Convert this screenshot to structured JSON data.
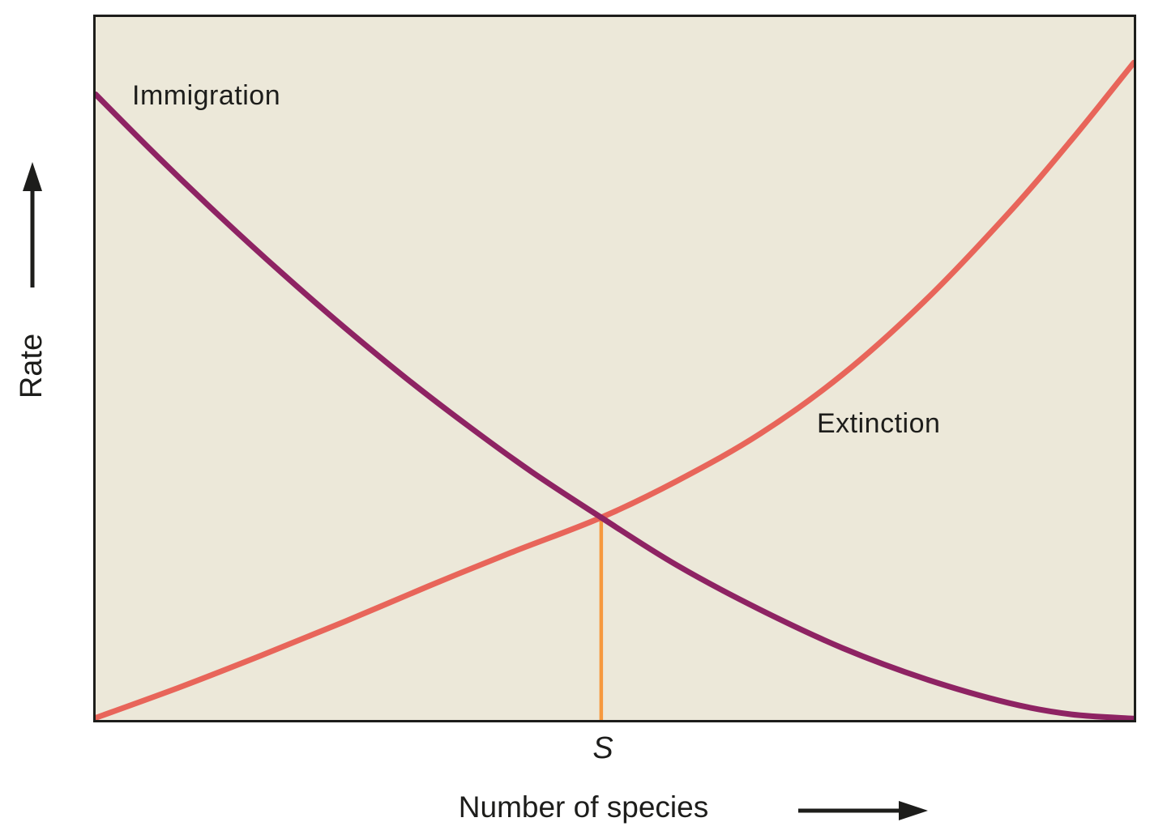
{
  "chart_data": {
    "type": "line",
    "title": "",
    "xlabel": "Number of species",
    "ylabel": "Rate",
    "plot_background": "#ece8d9",
    "border_color": "#1d1d1b",
    "x_axis": {
      "min": 0,
      "max": 1,
      "arrow": true,
      "ticks": [
        {
          "x": 0.487,
          "label": "S"
        }
      ]
    },
    "y_axis": {
      "min": 0,
      "max": 1,
      "arrow": true,
      "ticks": []
    },
    "legend_position": "inline-labels",
    "grid": false,
    "series": [
      {
        "name": "Immigration",
        "color": "#8e2363",
        "stroke_width": 7,
        "points": [
          [
            0,
            0.89
          ],
          [
            0.06,
            0.801
          ],
          [
            0.12,
            0.716
          ],
          [
            0.18,
            0.635
          ],
          [
            0.24,
            0.558
          ],
          [
            0.3,
            0.485
          ],
          [
            0.36,
            0.417
          ],
          [
            0.42,
            0.353
          ],
          [
            0.487,
            0.288
          ],
          [
            0.56,
            0.22
          ],
          [
            0.64,
            0.157
          ],
          [
            0.72,
            0.102
          ],
          [
            0.8,
            0.058
          ],
          [
            0.88,
            0.024
          ],
          [
            0.94,
            0.008
          ],
          [
            1,
            0.002
          ]
        ]
      },
      {
        "name": "Extinction",
        "color": "#e8655a",
        "stroke_width": 7,
        "points": [
          [
            0,
            0.003
          ],
          [
            0.08,
            0.046
          ],
          [
            0.16,
            0.092
          ],
          [
            0.24,
            0.14
          ],
          [
            0.32,
            0.19
          ],
          [
            0.4,
            0.238
          ],
          [
            0.487,
            0.288
          ],
          [
            0.56,
            0.34
          ],
          [
            0.64,
            0.407
          ],
          [
            0.72,
            0.492
          ],
          [
            0.8,
            0.598
          ],
          [
            0.88,
            0.722
          ],
          [
            0.94,
            0.825
          ],
          [
            1,
            0.935
          ]
        ]
      }
    ],
    "equilibrium": {
      "label": "S",
      "x": 0.487,
      "y": 0.288,
      "line_color": "#f6993f",
      "line_width": 4.5
    },
    "text_color": "#1d1d1b"
  }
}
